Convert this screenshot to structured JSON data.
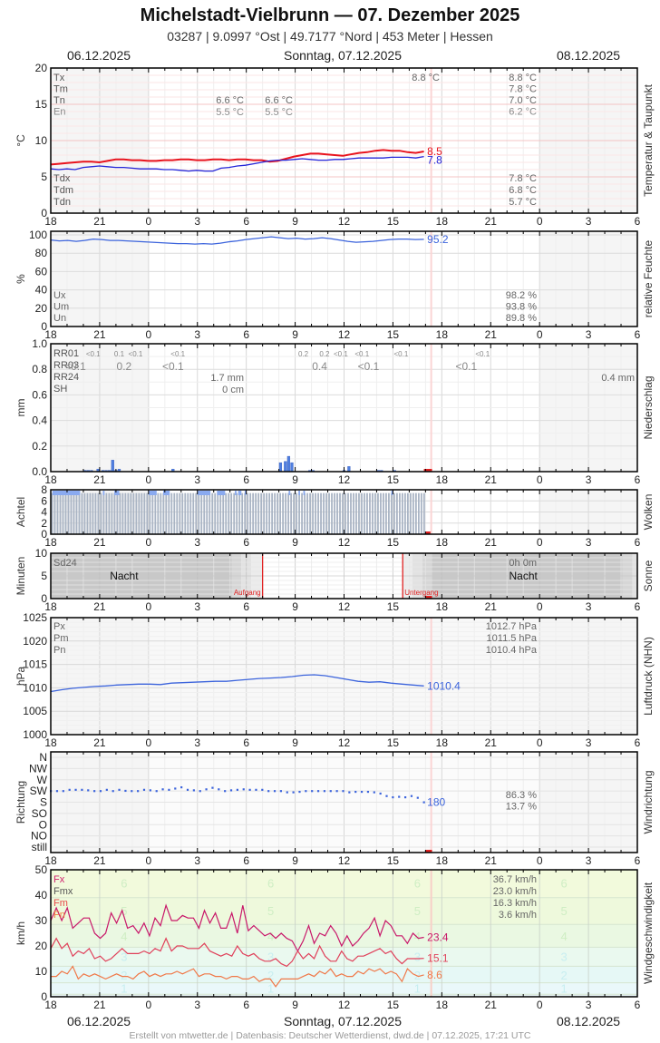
{
  "header": {
    "title": "Michelstadt-Vielbrunn  —  07. Dezember 2025",
    "subtitle": "03287  |  9.0997 °Ost  |  49.7177 °Nord  |  453 Meter  |  Hessen",
    "date_left": "06.12.2025",
    "date_center": "Sonntag, 07.12.2025",
    "date_right": "08.12.2025"
  },
  "footer": {
    "credit": "Erstellt von mtwetter.de | Datenbasis: Deutscher Wetterdienst, dwd.de | 07.12.2025, 17:21 UTC"
  },
  "x_axis": {
    "ticks": [
      "18",
      "21",
      "0",
      "3",
      "6",
      "9",
      "12",
      "15",
      "18",
      "21",
      "0",
      "3",
      "6"
    ],
    "start_hour": 18,
    "span_hours": 36,
    "now_hour_offset": 23.35
  },
  "chart_data": [
    {
      "id": "temperature",
      "type": "line",
      "title": "Temperatur & Taupunkt",
      "ylabel": "°C",
      "ylim": [
        0,
        20
      ],
      "yticks": [
        "0",
        "5",
        "10",
        "15",
        "20"
      ],
      "legend_top": [
        "Tx",
        "Tm",
        "Tn",
        "En"
      ],
      "legend_bottom": [
        "Tdx",
        "Tdm",
        "Tdn"
      ],
      "annotations": {
        "night_col1": [
          "6.6 °C",
          "5.5 °C"
        ],
        "night_col2": [
          "6.6 °C",
          "5.5 °C"
        ],
        "day_tx": "8.8 °C",
        "summary_top": [
          "8.8 °C",
          "7.8 °C",
          "7.0 °C",
          "6.2 °C"
        ],
        "summary_bottom": [
          "7.8 °C",
          "6.8 °C",
          "5.7 °C"
        ]
      },
      "series": [
        {
          "name": "Temperatur",
          "color": "#e8141e",
          "last_label": "8.5",
          "values": [
            6.7,
            6.8,
            6.9,
            7.0,
            7.1,
            7.1,
            7.0,
            7.2,
            7.4,
            7.4,
            7.3,
            7.3,
            7.2,
            7.2,
            7.3,
            7.3,
            7.4,
            7.4,
            7.3,
            7.3,
            7.4,
            7.4,
            7.3,
            7.4,
            7.4,
            7.3,
            7.3,
            7.1,
            7.2,
            7.5,
            7.8,
            8.0,
            8.2,
            8.2,
            8.1,
            8.0,
            7.9,
            8.1,
            8.3,
            8.4,
            8.6,
            8.7,
            8.6,
            8.6,
            8.4,
            8.3,
            8.5
          ]
        },
        {
          "name": "Taupunkt",
          "color": "#2424d8",
          "last_label": "7.8",
          "values": [
            6.1,
            6.0,
            6.1,
            6.0,
            6.3,
            6.4,
            6.5,
            6.4,
            6.3,
            6.3,
            6.2,
            6.1,
            6.1,
            6.1,
            6.0,
            6.0,
            5.9,
            5.8,
            5.9,
            5.8,
            5.8,
            6.2,
            6.3,
            6.5,
            6.6,
            6.8,
            7.0,
            7.2,
            7.3,
            7.3,
            7.4,
            7.5,
            7.4,
            7.3,
            7.3,
            7.4,
            7.4,
            7.5,
            7.6,
            7.6,
            7.6,
            7.6,
            7.7,
            7.7,
            7.7,
            7.6,
            7.8
          ]
        }
      ]
    },
    {
      "id": "humidity",
      "type": "line",
      "title": "relative Feuchte",
      "ylabel": "%",
      "ylim": [
        0,
        100
      ],
      "yticks": [
        "0",
        "20",
        "40",
        "60",
        "80",
        "100"
      ],
      "legend": [
        "Ux",
        "Um",
        "Un"
      ],
      "summary": [
        "98.2 %",
        "93.8 %",
        "89.8 %"
      ],
      "series": [
        {
          "name": "Feuchte",
          "color": "#3c64dc",
          "last_label": "95.2",
          "values": [
            94.5,
            93.5,
            94,
            93,
            94,
            95.5,
            95,
            94,
            94,
            93.5,
            93,
            92.5,
            92,
            91.5,
            91,
            90.5,
            90.5,
            90,
            90.5,
            90,
            91,
            92.5,
            93.5,
            95,
            96,
            97,
            98,
            97,
            96,
            96.5,
            95.5,
            96,
            97,
            96,
            94.5,
            93,
            92,
            92.5,
            93,
            94,
            95,
            95.5,
            95.5,
            95,
            95.2
          ]
        }
      ]
    },
    {
      "id": "precipitation",
      "type": "bar",
      "title": "Niederschlag",
      "ylabel": "mm",
      "ylim": [
        0,
        1.0
      ],
      "yticks": [
        "0.0",
        "0.2",
        "0.4",
        "0.6",
        "0.8",
        "1.0"
      ],
      "legend": [
        "RR01",
        "RR03",
        "RR24",
        "SH"
      ],
      "rr01_labels": [
        {
          "h": 2.6,
          "t": "<0.1"
        },
        {
          "h": 4.2,
          "t": "0.1"
        },
        {
          "h": 5.2,
          "t": "<0.1"
        },
        {
          "h": 7.8,
          "t": "<0.1"
        },
        {
          "h": 15.5,
          "t": "0.2"
        },
        {
          "h": 16.8,
          "t": "0.2"
        },
        {
          "h": 17.8,
          "t": "<0.1"
        },
        {
          "h": 19.1,
          "t": "<0.1"
        },
        {
          "h": 21.5,
          "t": "<0.1"
        },
        {
          "h": 26.5,
          "t": "<0.1"
        }
      ],
      "rr03_labels": [
        {
          "h": 1.5,
          "t": "<0.1"
        },
        {
          "h": 4.5,
          "t": "0.2"
        },
        {
          "h": 7.5,
          "t": "<0.1"
        },
        {
          "h": 16.5,
          "t": "0.4"
        },
        {
          "h": 19.5,
          "t": "<0.1"
        },
        {
          "h": 25.5,
          "t": "<0.1"
        }
      ],
      "rr24_day": "1.7 mm",
      "sh_day": "0 cm",
      "rr24_next": "0.4 mm",
      "bars_hour_offset": [
        2.1,
        2.3,
        2.5,
        2.9,
        3.2,
        3.4,
        3.6,
        3.8,
        4.0,
        4.2,
        7.5,
        14.1,
        14.4,
        14.6,
        14.8,
        15.9,
        16.1,
        18.0,
        18.3,
        20.1,
        20.3,
        21.1
      ],
      "bars_value": [
        0.01,
        0.01,
        0.01,
        0.02,
        0.01,
        0.01,
        0.01,
        0.09,
        0.01,
        0.02,
        0.02,
        0.07,
        0.08,
        0.12,
        0.07,
        0.01,
        0.01,
        0.01,
        0.04,
        0.01,
        0.01,
        0.01
      ],
      "color": "#4f7fe0"
    },
    {
      "id": "clouds",
      "type": "bar",
      "title": "Wolken",
      "ylabel": "Achtel",
      "ylim": [
        0,
        8
      ],
      "yticks": [
        "0",
        "2",
        "4",
        "6",
        "8"
      ],
      "values_8_segments_hours": [
        [
          0.1,
          1.8
        ],
        [
          3.2,
          3.3
        ],
        [
          3.9,
          4.2
        ],
        [
          6.0,
          6.5
        ],
        [
          6.9,
          7.3
        ],
        [
          9.0,
          9.8
        ],
        [
          10.2,
          10.7
        ],
        [
          11.3,
          11.4
        ],
        [
          11.5,
          11.7
        ],
        [
          11.9,
          12.0
        ],
        [
          14.6,
          14.7
        ],
        [
          15.2,
          15.3
        ],
        [
          15.5,
          15.6
        ],
        [
          20.9,
          21.0
        ]
      ],
      "data_end_hour": 23.0,
      "color_full": "#8aaaf0",
      "color_bar": "#a9b4c4"
    },
    {
      "id": "sunshine",
      "type": "area",
      "title": "Sonne",
      "ylabel": "Minuten",
      "ylim": [
        0,
        10
      ],
      "yticks": [
        "0",
        "5",
        "10"
      ],
      "legend": "Sd24",
      "summary": "0h 0m",
      "night_label": "Nacht",
      "sunrise_label": "Aufgang",
      "sunset_label": "Untergang",
      "sunrise_hour": 13.0,
      "sunset_hour": 21.6
    },
    {
      "id": "pressure",
      "type": "line",
      "title": "Luftdruck (NHN)",
      "ylabel": "hPa",
      "ylim": [
        1000,
        1025
      ],
      "yticks": [
        "1000",
        "1005",
        "1010",
        "1015",
        "1020",
        "1025"
      ],
      "legend": [
        "Px",
        "Pm",
        "Pn"
      ],
      "summary": [
        "1012.7 hPa",
        "1011.5 hPa",
        "1010.4 hPa"
      ],
      "series": [
        {
          "name": "Luftdruck",
          "color": "#3c64dc",
          "last_label": "1010.4",
          "values": [
            1009.2,
            1009.6,
            1009.9,
            1010.1,
            1010.3,
            1010.4,
            1010.6,
            1010.7,
            1010.8,
            1010.8,
            1010.7,
            1011.0,
            1011.1,
            1011.2,
            1011.3,
            1011.4,
            1011.4,
            1011.6,
            1011.8,
            1012.0,
            1012.1,
            1012.2,
            1012.4,
            1012.7,
            1012.8,
            1012.6,
            1012.2,
            1011.8,
            1011.4,
            1011.2,
            1011.3,
            1011.0,
            1010.8,
            1010.6,
            1010.4
          ]
        }
      ]
    },
    {
      "id": "wind_direction",
      "type": "scatter",
      "title": "Windrichtung",
      "ylabel": "Richtung",
      "categories": [
        "still",
        "NO",
        "O",
        "SO",
        "S",
        "SW",
        "W",
        "NW",
        "N"
      ],
      "summary": [
        "86.3 %",
        "13.7 %"
      ],
      "last_label": "180",
      "color": "#3c64dc",
      "values_deg": [
        225,
        225,
        225,
        230,
        230,
        230,
        228,
        225,
        225,
        230,
        225,
        230,
        226,
        225,
        225,
        230,
        228,
        225,
        232,
        230,
        235,
        240,
        230,
        228,
        225,
        232,
        238,
        232,
        225,
        228,
        230,
        232,
        230,
        230,
        230,
        225,
        225,
        225,
        220,
        220,
        222,
        225,
        225,
        225,
        225,
        225,
        225,
        225,
        220,
        222,
        222,
        222,
        220,
        215,
        205,
        200,
        202,
        200,
        205,
        198,
        180
      ]
    },
    {
      "id": "wind_speed",
      "type": "line",
      "title": "Windgeschwindigkeit",
      "ylabel": "km/h",
      "ylim": [
        0,
        50
      ],
      "yticks": [
        "0",
        "10",
        "20",
        "30",
        "40",
        "50"
      ],
      "legend": [
        "Fx",
        "Fmx",
        "Fm",
        "Fn"
      ],
      "legend_colors": [
        "#d0206e",
        "#555555",
        "#e84848",
        "#f08040"
      ],
      "summary": [
        "36.7 km/h",
        "23.0 km/h",
        "16.3 km/h",
        "3.6 km/h"
      ],
      "beaufort_labels": [
        "1",
        "2",
        "3",
        "4",
        "5",
        "6"
      ],
      "series": [
        {
          "name": "Fx",
          "color": "#c8186a",
          "last_label": "23.4",
          "values": [
            30,
            35,
            30,
            35,
            27,
            29,
            31,
            31,
            25,
            23,
            25,
            33,
            29,
            34,
            27,
            28,
            25,
            29,
            24,
            31,
            28,
            36,
            30,
            30,
            32,
            31,
            31,
            27,
            34,
            29,
            33,
            27,
            27,
            33,
            25,
            36,
            26,
            28,
            26,
            24,
            25,
            23,
            25,
            23,
            22,
            18,
            22,
            28,
            21,
            25,
            24,
            28,
            25,
            20,
            24,
            20,
            22,
            25,
            27,
            31,
            24,
            30,
            28,
            24,
            24,
            21,
            25,
            23,
            23.4
          ]
        },
        {
          "name": "Fm",
          "color": "#e0405a",
          "last_label": "15.1",
          "values": [
            19,
            23,
            19,
            21,
            16,
            18,
            17,
            19,
            15,
            16,
            14,
            15,
            17,
            19,
            17,
            17,
            17,
            18,
            17,
            19,
            18,
            23,
            18,
            20,
            20,
            19,
            19,
            19,
            21,
            18,
            17,
            16,
            17,
            16,
            20,
            17,
            16,
            17,
            15,
            14,
            14,
            15,
            13,
            12,
            14,
            18,
            15,
            17,
            15,
            20,
            16,
            14,
            14,
            18,
            15,
            14,
            16,
            16,
            17,
            18,
            19,
            17,
            18,
            15,
            13,
            15,
            15,
            15,
            15.1
          ]
        },
        {
          "name": "Fn",
          "color": "#f07848",
          "last_label": "8.6",
          "values": [
            8,
            8,
            10,
            9,
            12,
            7,
            9,
            8,
            9,
            8,
            7,
            8,
            9,
            8,
            8,
            7,
            9,
            10,
            8,
            9,
            8,
            9,
            9,
            10,
            9,
            10,
            11,
            8,
            9,
            9,
            8,
            8,
            7,
            8,
            8,
            7,
            7,
            8,
            6,
            7,
            7,
            4,
            7,
            7,
            7,
            7,
            8,
            9,
            8,
            10,
            9,
            11,
            8,
            9,
            8,
            8,
            10,
            9,
            11,
            10,
            11,
            9,
            10,
            9,
            6,
            11,
            9,
            8,
            8.6
          ]
        }
      ]
    }
  ]
}
